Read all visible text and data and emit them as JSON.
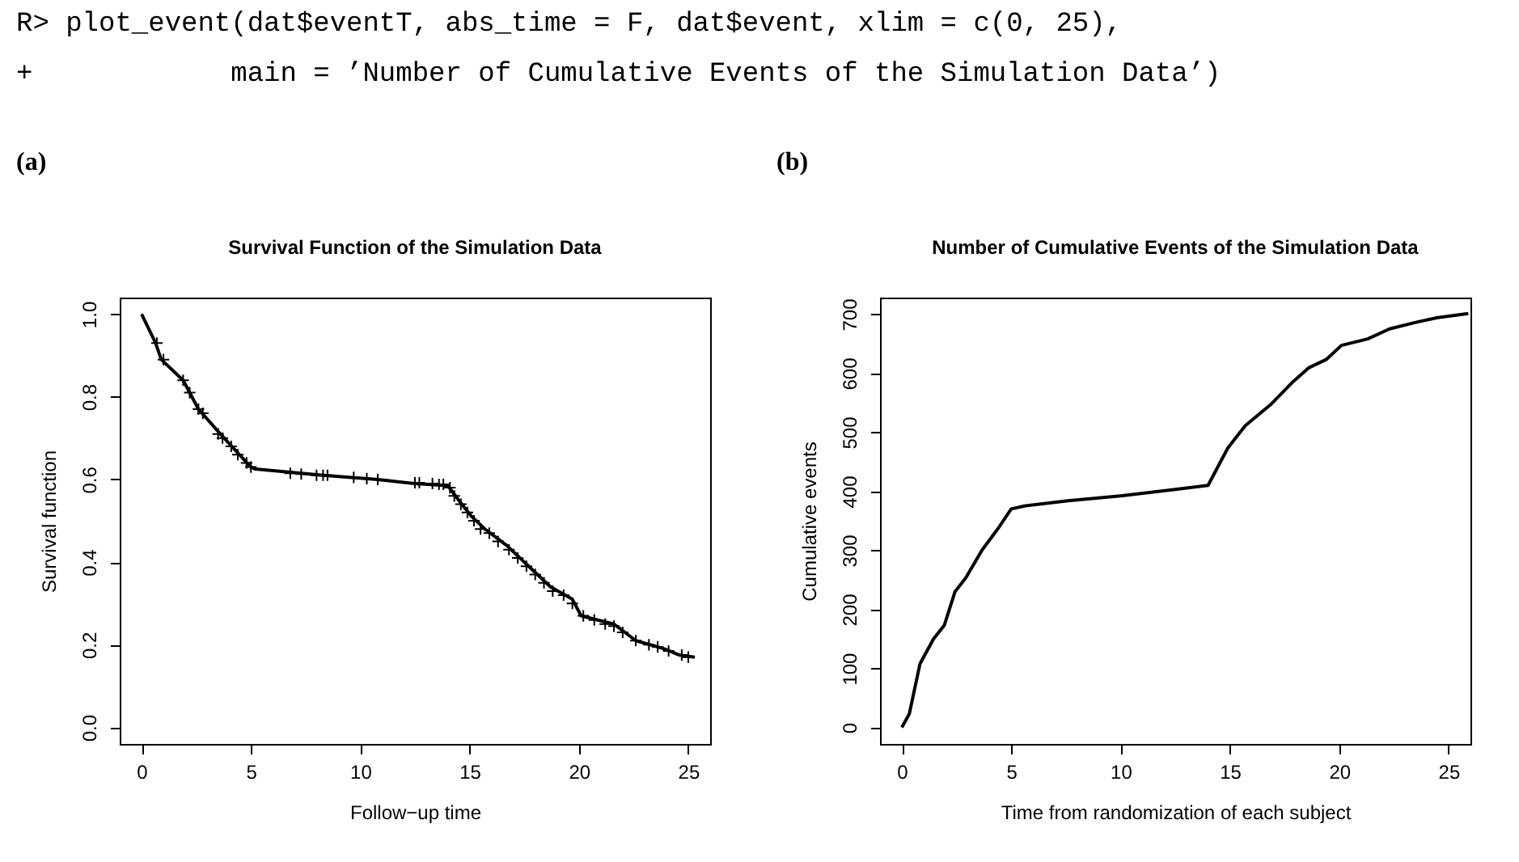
{
  "chart_data": [
    {
      "type": "line",
      "title": "Survival Function of the Simulation Data",
      "xlabel": "Follow−up time",
      "ylabel": "Survival function",
      "xlim": [
        -1,
        26
      ],
      "ylim": [
        -0.04,
        1.04
      ],
      "xticks": [
        0,
        5,
        10,
        15,
        20,
        25
      ],
      "yticks": [
        {
          "value": 0,
          "label": "0.0"
        },
        0.2,
        0.4,
        0.6,
        0.8,
        {
          "value": 1,
          "label": "1.0"
        }
      ],
      "annotations": [
        "R> plot_event(dat$eventT, abs_time = F, dat$event, xlim = c(0, 25),",
        "+            main = ’Number of Cumulative Events of the Simulation Data’)",
        "(a)"
      ],
      "series": [
        {
          "color": "#000000",
          "x": [
            0,
            0.64,
            0.9,
            1.9,
            2.6,
            3.6,
            4.3,
            5.0,
            5.2,
            8.3,
            10.8,
            12.5,
            14.0,
            14.5,
            15.1,
            15.7,
            16.7,
            17.7,
            18.7,
            19.7,
            20.1,
            21.6,
            22.6,
            23.9,
            24.6,
            25.3
          ],
          "values": [
            1.0,
            0.93,
            0.89,
            0.84,
            0.77,
            0.71,
            0.67,
            0.63,
            0.625,
            0.61,
            0.6,
            0.59,
            0.585,
            0.55,
            0.51,
            0.48,
            0.44,
            0.39,
            0.34,
            0.31,
            0.27,
            0.25,
            0.21,
            0.19,
            0.175,
            0.17
          ]
        },
        {
          "type": "scatter",
          "marker": "cross",
          "color": "#000000",
          "x": [
            0.7,
            1.0,
            1.9,
            2.2,
            2.6,
            2.8,
            3.5,
            3.7,
            4.1,
            4.4,
            4.8,
            5.0,
            6.8,
            7.3,
            8.0,
            8.3,
            8.5,
            9.7,
            10.3,
            10.8,
            12.5,
            12.7,
            13.3,
            13.6,
            13.8,
            14.1,
            14.3,
            14.6,
            14.9,
            15.2,
            15.5,
            15.9,
            16.3,
            16.8,
            17.2,
            17.6,
            18.0,
            18.4,
            18.8,
            19.3,
            19.7,
            20.2,
            20.7,
            21.2,
            21.6,
            22.0,
            22.6,
            23.2,
            23.6,
            24.1,
            24.7,
            25.0
          ],
          "values": [
            0.93,
            0.89,
            0.84,
            0.81,
            0.77,
            0.76,
            0.71,
            0.7,
            0.68,
            0.66,
            0.64,
            0.63,
            0.615,
            0.613,
            0.61,
            0.61,
            0.61,
            0.605,
            0.602,
            0.6,
            0.592,
            0.592,
            0.59,
            0.588,
            0.588,
            0.58,
            0.56,
            0.54,
            0.52,
            0.5,
            0.48,
            0.47,
            0.45,
            0.43,
            0.41,
            0.39,
            0.37,
            0.35,
            0.33,
            0.32,
            0.3,
            0.27,
            0.26,
            0.25,
            0.245,
            0.23,
            0.21,
            0.2,
            0.195,
            0.185,
            0.175,
            0.17
          ]
        }
      ]
    },
    {
      "type": "line",
      "title": "Number of Cumulative Events of the Simulation Data",
      "xlabel": "Time from randomization of each subject",
      "ylabel": "Cumulative events",
      "xlim": [
        -1,
        26
      ],
      "ylim": [
        -28,
        728
      ],
      "xticks": [
        0,
        5,
        10,
        15,
        20,
        25
      ],
      "yticks": [
        0,
        100,
        200,
        300,
        400,
        500,
        600,
        700
      ],
      "annotations": [
        "(b)"
      ],
      "series": [
        {
          "color": "#000000",
          "x": [
            0,
            0.34,
            0.83,
            1.45,
            1.94,
            2.43,
            2.92,
            3.66,
            4.4,
            5.0,
            5.6,
            7.6,
            10.0,
            12.5,
            14.0,
            14.9,
            15.7,
            16.9,
            17.9,
            18.6,
            19.4,
            20.1,
            21.3,
            22.3,
            23.5,
            24.5,
            25.9
          ],
          "values": [
            0,
            23,
            108,
            150,
            173,
            230,
            253,
            300,
            337,
            370,
            375,
            384,
            392,
            403,
            410,
            473,
            511,
            548,
            586,
            609,
            623,
            647,
            658,
            675,
            686,
            694,
            701
          ]
        }
      ]
    }
  ]
}
